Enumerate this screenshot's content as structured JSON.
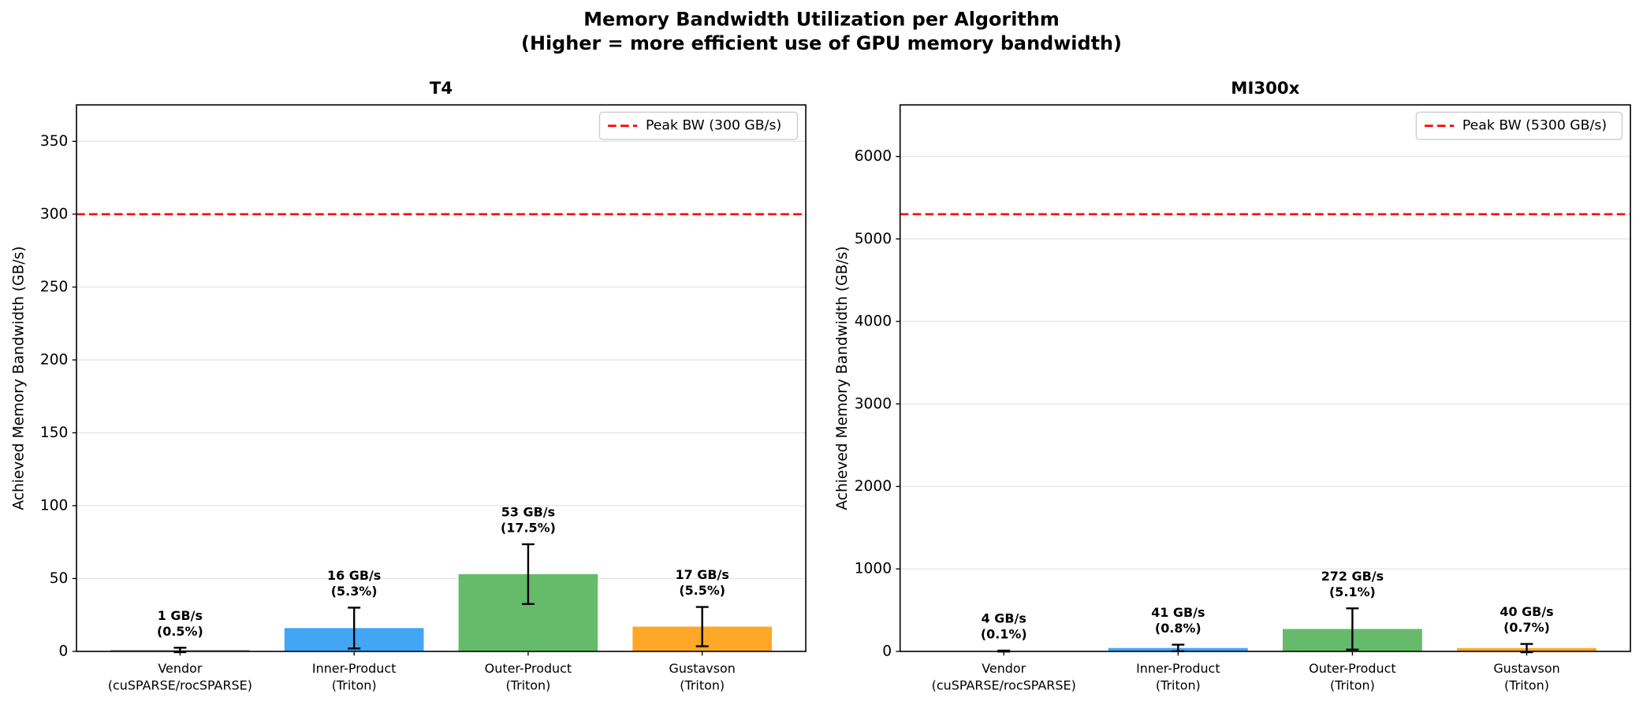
{
  "title": "Memory Bandwidth Utilization per Algorithm",
  "subtitle": "(Higher = more efficient use of GPU memory bandwidth)",
  "chart_data": [
    {
      "type": "bar",
      "title": "T4",
      "y_label": "Achieved Memory Bandwidth (GB/s)",
      "categories": [
        [
          "Vendor",
          "(cuSPARSE/rocSPARSE)"
        ],
        [
          "Inner-Product",
          "(Triton)"
        ],
        [
          "Outer-Product",
          "(Triton)"
        ],
        [
          "Gustavson",
          "(Triton)"
        ]
      ],
      "values": [
        1,
        16,
        53,
        17
      ],
      "errors": [
        1.5,
        14,
        20.5,
        13.5
      ],
      "value_labels": [
        "1 GB/s",
        "16 GB/s",
        "53 GB/s",
        "17 GB/s"
      ],
      "percent_labels": [
        "(0.5%)",
        "(5.3%)",
        "(17.5%)",
        "(5.5%)"
      ],
      "colors": [
        "#9e9e9e",
        "#42a5f5",
        "#66bb6a",
        "#ffa726"
      ],
      "peak": 300,
      "peak_label": "Peak BW (300 GB/s)",
      "peak_color": "#ff0000",
      "ylim": [
        0,
        375
      ],
      "yticks": [
        0,
        50,
        100,
        150,
        200,
        250,
        300,
        350
      ],
      "grid": true,
      "legend": "upper right"
    },
    {
      "type": "bar",
      "title": "MI300x",
      "y_label": "Achieved Memory Bandwidth (GB/s)",
      "categories": [
        [
          "Vendor",
          "(cuSPARSE/rocSPARSE)"
        ],
        [
          "Inner-Product",
          "(Triton)"
        ],
        [
          "Outer-Product",
          "(Triton)"
        ],
        [
          "Gustavson",
          "(Triton)"
        ]
      ],
      "values": [
        4,
        41,
        272,
        40
      ],
      "errors": [
        6,
        40,
        250,
        50
      ],
      "value_labels": [
        "4 GB/s",
        "41 GB/s",
        "272 GB/s",
        "40 GB/s"
      ],
      "percent_labels": [
        "(0.1%)",
        "(0.8%)",
        "(5.1%)",
        "(0.7%)"
      ],
      "colors": [
        "#9e9e9e",
        "#42a5f5",
        "#66bb6a",
        "#ffa726"
      ],
      "peak": 5300,
      "peak_label": "Peak BW (5300 GB/s)",
      "peak_color": "#ff0000",
      "ylim": [
        0,
        6625
      ],
      "yticks": [
        0,
        1000,
        2000,
        3000,
        4000,
        5000,
        6000
      ],
      "grid": true,
      "legend": "upper right"
    }
  ]
}
